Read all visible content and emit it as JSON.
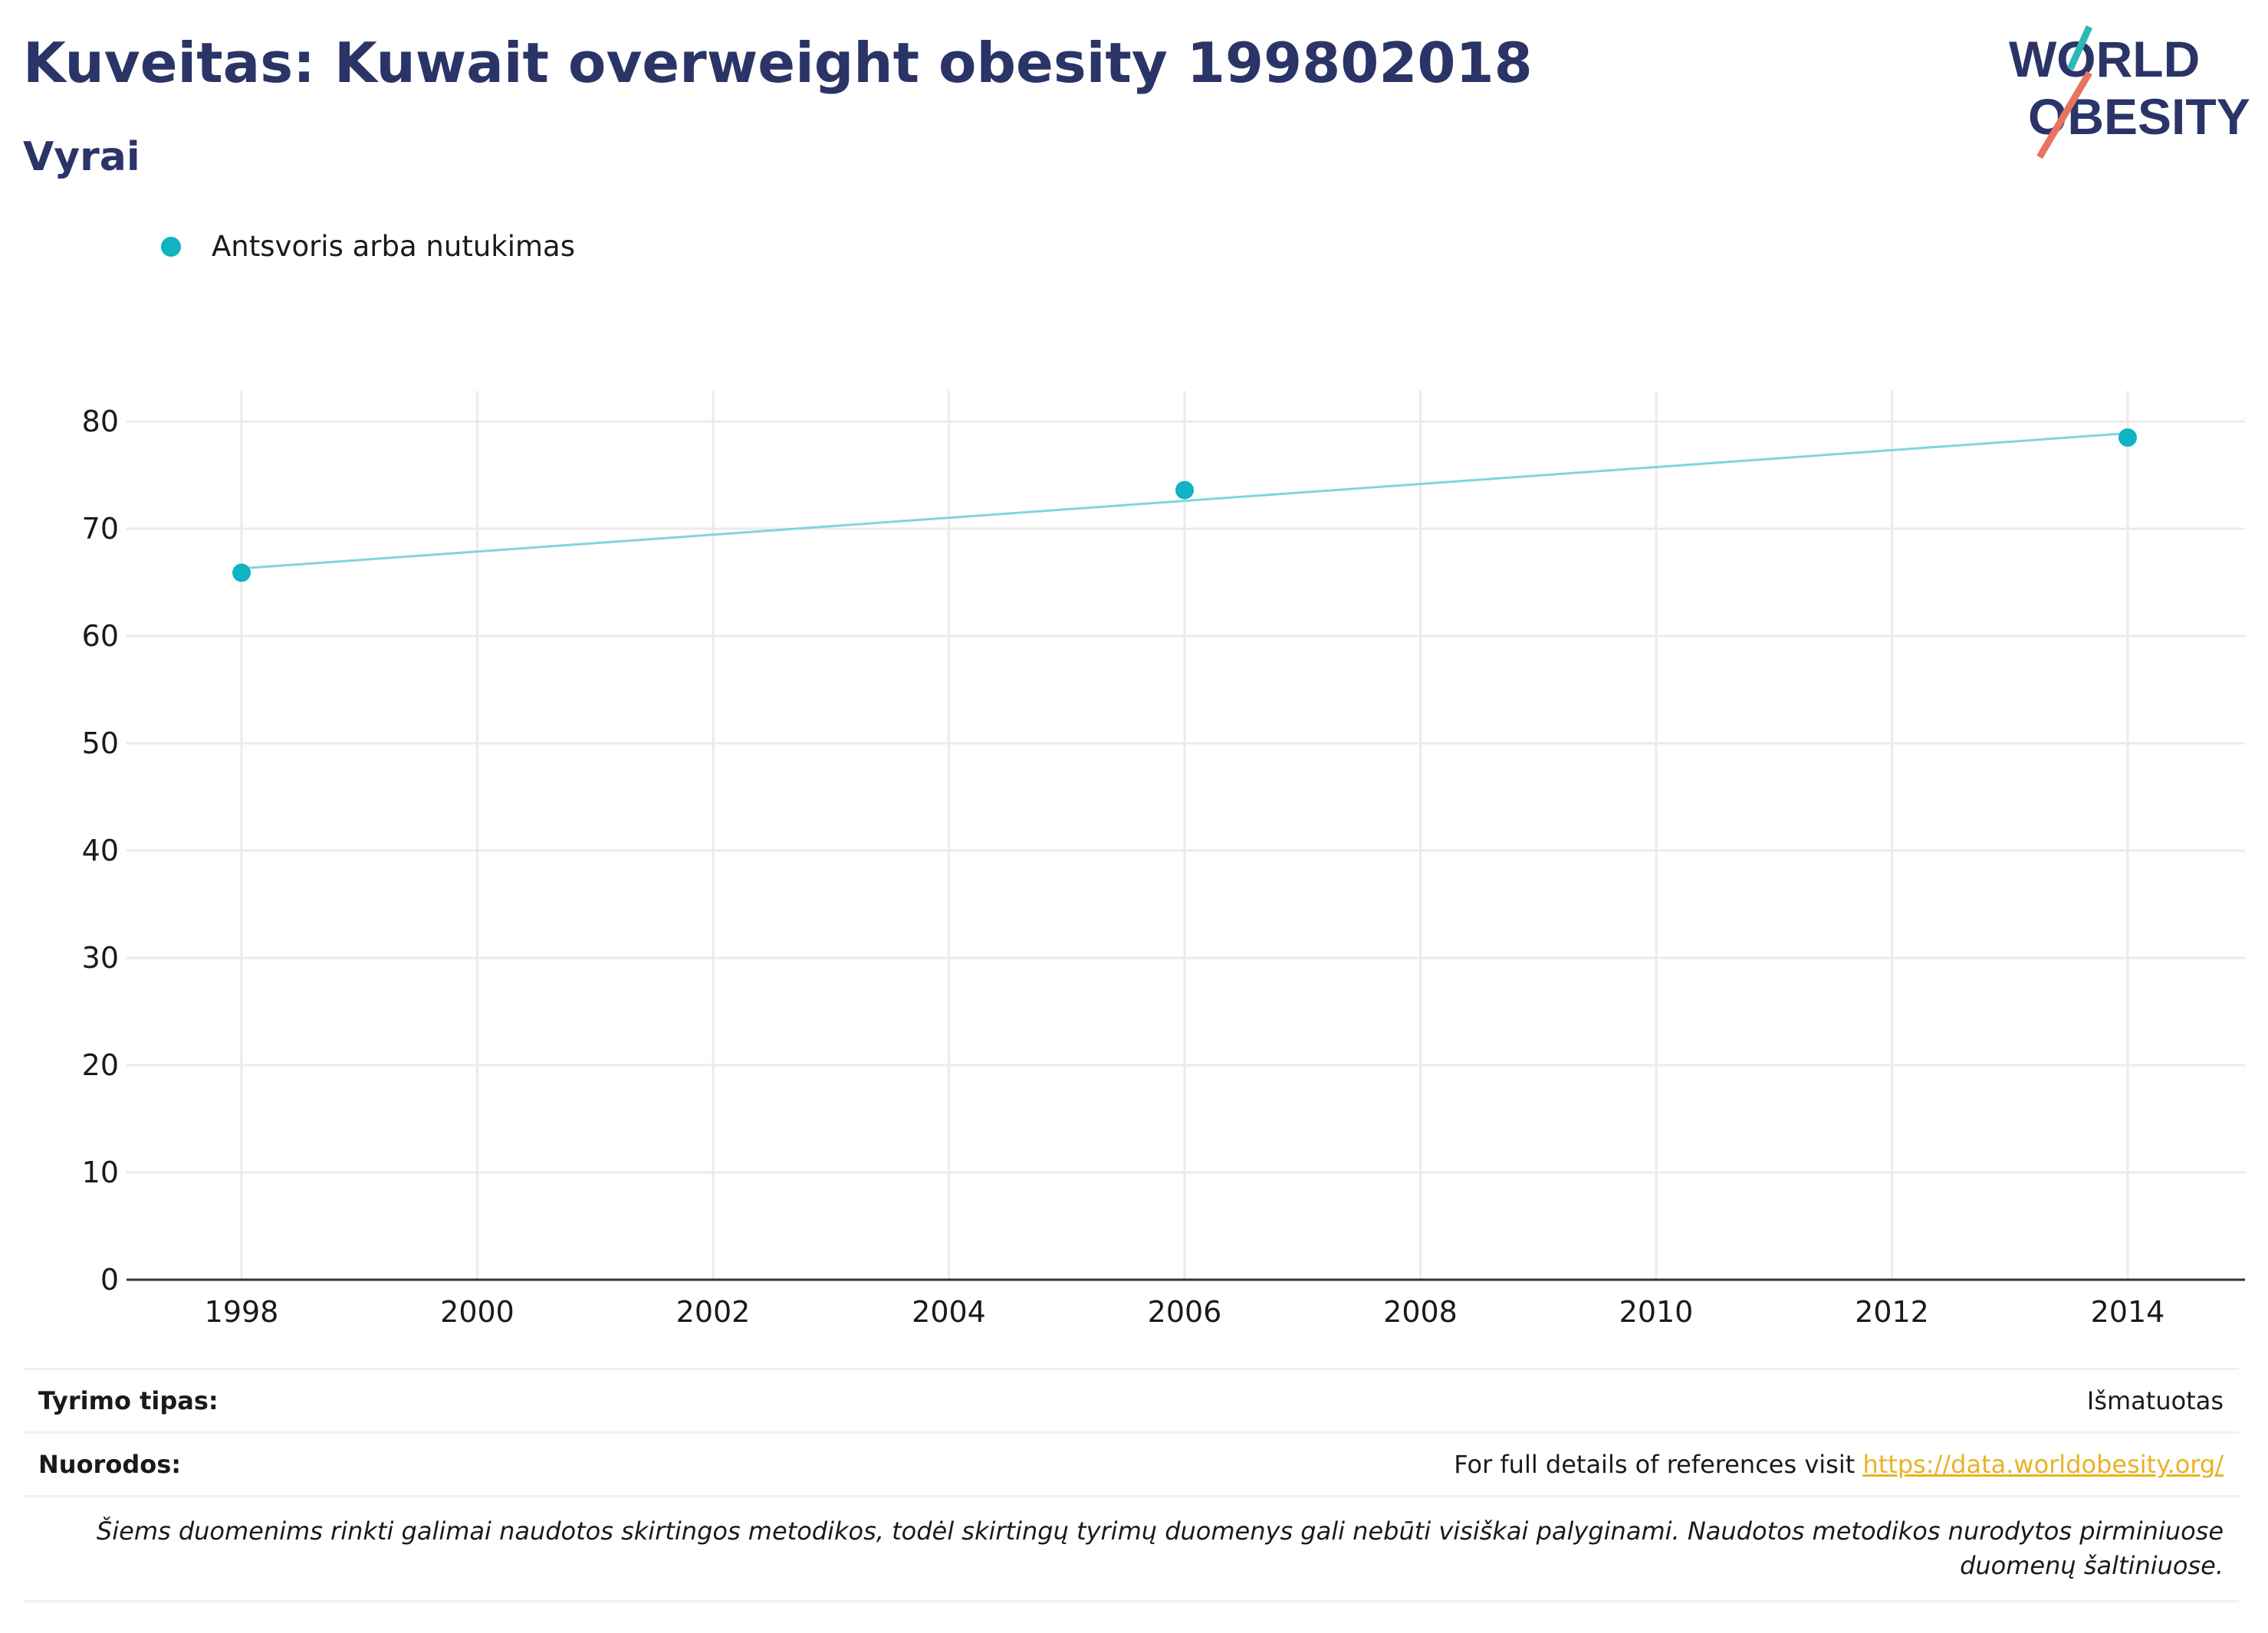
{
  "header": {
    "title": "Kuveitas: Kuwait overweight obesity 199802018",
    "subtitle": "Vyrai"
  },
  "logo": {
    "line1": "WORLD",
    "line2": "OBESITY"
  },
  "legend": {
    "label": "Antsvoris arba nutukimas",
    "color": "#0fb3c1"
  },
  "chart_data": {
    "type": "scatter",
    "series": [
      {
        "name": "Antsvoris arba nutukimas",
        "x": [
          1998,
          2006,
          2014
        ],
        "values": [
          65.9,
          73.6,
          78.5
        ],
        "color": "#0fb3c1"
      }
    ],
    "trendline": {
      "x": [
        1998,
        2014
      ],
      "values": [
        66.3,
        78.9
      ],
      "color": "#7fd6dc"
    },
    "xlim": [
      1998,
      2014
    ],
    "ylim": [
      0,
      80
    ],
    "xticks": [
      1998,
      2000,
      2002,
      2004,
      2006,
      2008,
      2010,
      2012,
      2014
    ],
    "yticks": [
      0,
      10,
      20,
      30,
      40,
      50,
      60,
      70,
      80
    ],
    "grid": true,
    "legend_position": "top-left"
  },
  "footer": {
    "survey_type_label": "Tyrimo tipas:",
    "survey_type_value": "Išmatuotas",
    "references_label": "Nuorodos:",
    "references_text": "For full details of references visit ",
    "references_link": "https://data.worldobesity.org/",
    "note": "Šiems duomenims rinkti galimai naudotos skirtingos metodikos, todėl skirtingų tyrimų duomenys gali nebūti visiškai palyginami. Naudotos metodikos nurodytos pirminiuose duomenų šaltiniuose."
  }
}
